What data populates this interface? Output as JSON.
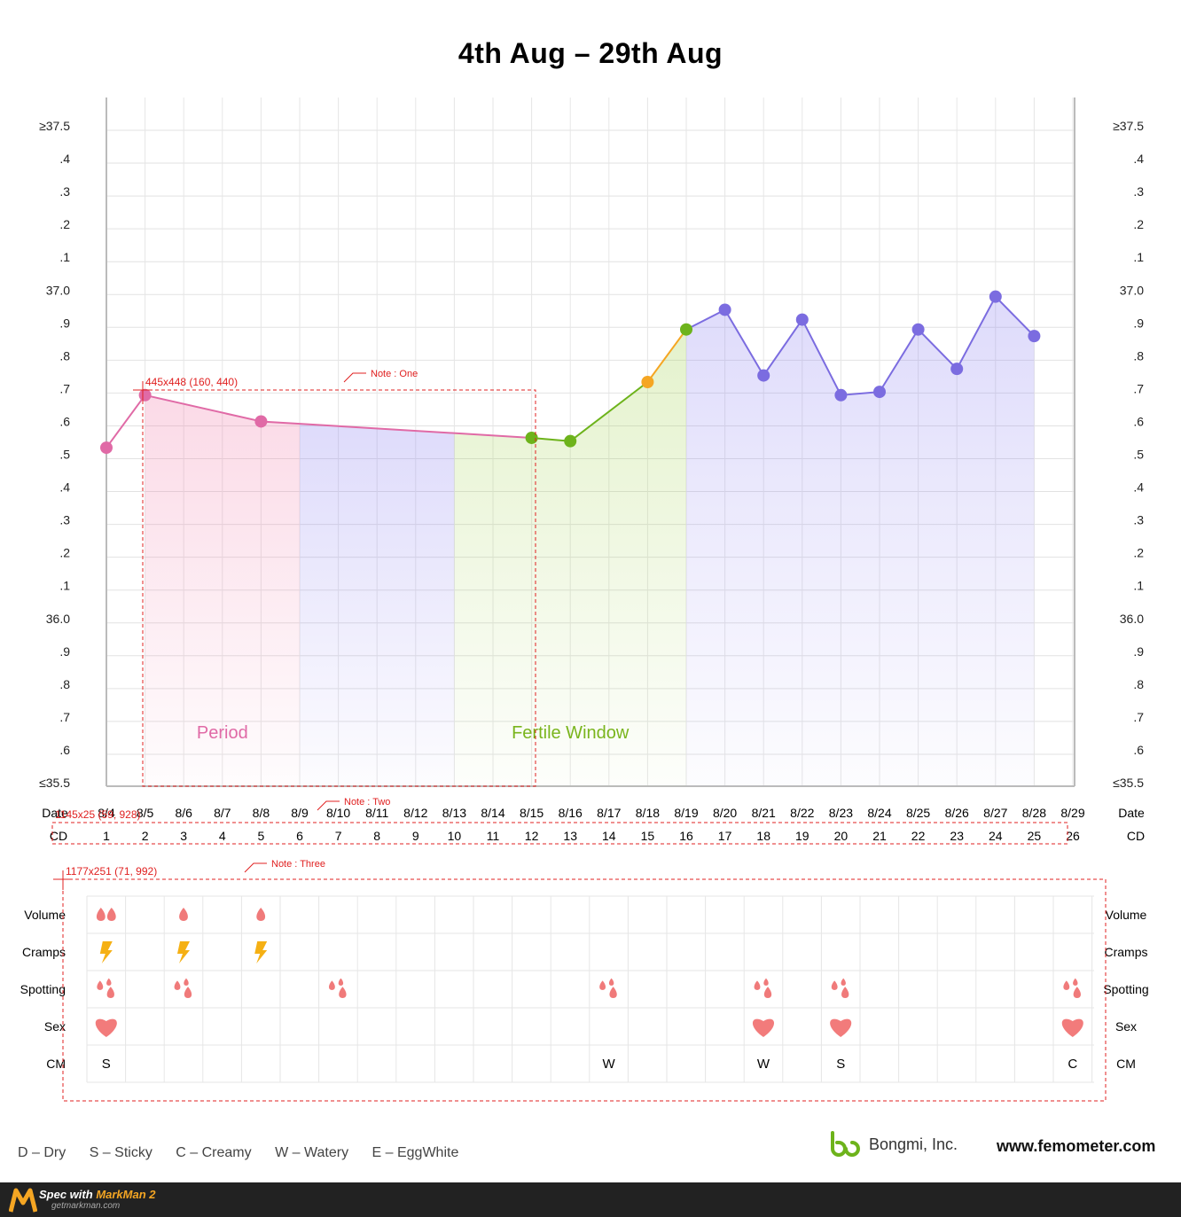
{
  "title": "4th Aug – 29th Aug",
  "chart_data": {
    "type": "line",
    "title": "4th Aug – 29th Aug",
    "y_left_labels": [
      "≥37.5",
      ".4",
      ".3",
      ".2",
      ".1",
      "37.0",
      ".9",
      ".8",
      ".7",
      ".6",
      ".5",
      ".4",
      ".3",
      ".2",
      ".1",
      "36.0",
      ".9",
      ".8",
      ".7",
      ".6",
      "≤35.5"
    ],
    "ylim": [
      35.5,
      37.5
    ],
    "grid": true,
    "dates": [
      "8/4",
      "8/5",
      "8/6",
      "8/7",
      "8/8",
      "8/9",
      "8/10",
      "8/11",
      "8/12",
      "8/13",
      "8/14",
      "8/15",
      "8/16",
      "8/17",
      "8/18",
      "8/19",
      "8/20",
      "8/21",
      "8/22",
      "8/23",
      "8/24",
      "8/25",
      "8/26",
      "8/27",
      "8/28",
      "8/29"
    ],
    "cycle_days": [
      "1",
      "2",
      "3",
      "4",
      "5",
      "6",
      "7",
      "8",
      "9",
      "10",
      "11",
      "12",
      "13",
      "14",
      "15",
      "16",
      "17",
      "18",
      "19",
      "20",
      "21",
      "22",
      "23",
      "24",
      "25",
      "26"
    ],
    "date_label": "Date",
    "cd_label": "CD",
    "series": [
      {
        "phase": "period",
        "points": [
          {
            "cd": 1,
            "temp": 36.52
          },
          {
            "cd": 2,
            "temp": 36.68
          },
          {
            "cd": 5,
            "temp": 36.6
          }
        ]
      },
      {
        "phase": "fertile",
        "points": [
          {
            "cd": 12,
            "temp": 36.55
          },
          {
            "cd": 13,
            "temp": 36.54
          },
          {
            "cd": 15,
            "temp": 36.72
          },
          {
            "cd": 16,
            "temp": 36.88
          }
        ]
      },
      {
        "phase": "luteal",
        "points": [
          {
            "cd": 16,
            "temp": 36.88
          },
          {
            "cd": 17,
            "temp": 36.94
          },
          {
            "cd": 18,
            "temp": 36.74
          },
          {
            "cd": 19,
            "temp": 36.91
          },
          {
            "cd": 20,
            "temp": 36.68
          },
          {
            "cd": 21,
            "temp": 36.69
          },
          {
            "cd": 22,
            "temp": 36.88
          },
          {
            "cd": 23,
            "temp": 36.76
          },
          {
            "cd": 24,
            "temp": 36.98
          },
          {
            "cd": 25,
            "temp": 36.86
          }
        ]
      }
    ],
    "ovulation_point": {
      "cd": 15,
      "temp": 36.72
    },
    "phases": [
      {
        "name": "Period",
        "from": 2,
        "to": 6,
        "color": "#e06aa6"
      },
      {
        "name": "Fertile Window",
        "from": 11,
        "to": 16,
        "color": "#7ab51d"
      }
    ],
    "colors": {
      "period": "#e06aa6",
      "fertile": "#6db31b",
      "ovulation": "#f5a623",
      "luteal": "#7b6ce0"
    }
  },
  "annotations": {
    "box1_label": "445x448 (160, 440)",
    "note1": "Note : One",
    "box2_label": "1145x25 (59, 928)",
    "note2": "Note : Two",
    "box3_label": "1177x251 (71, 992)",
    "note3": "Note : Three"
  },
  "symptom_rows": [
    "Volume",
    "Cramps",
    "Spotting",
    "Sex",
    "CM"
  ],
  "symptoms": {
    "volume": [
      {
        "cd": 1,
        "level": 2
      },
      {
        "cd": 3,
        "level": 1
      },
      {
        "cd": 5,
        "level": 1
      }
    ],
    "cramps": [
      1,
      3,
      5
    ],
    "spotting": [
      1,
      3,
      7,
      14,
      18,
      20,
      26
    ],
    "sex": [
      1,
      18,
      20,
      26
    ],
    "cm": [
      {
        "cd": 1,
        "v": "S"
      },
      {
        "cd": 14,
        "v": "W"
      },
      {
        "cd": 18,
        "v": "W"
      },
      {
        "cd": 20,
        "v": "S"
      },
      {
        "cd": 26,
        "v": "C"
      }
    ]
  },
  "legend": [
    "D – Dry",
    "S – Sticky",
    "C – Creamy",
    "W – Watery",
    "E – EggWhite"
  ],
  "brand": "Bongmi, Inc.",
  "site": "www.femometer.com",
  "footer": {
    "spec": "Spec with",
    "product": "MarkMan 2",
    "url": "getmarkman.com"
  }
}
